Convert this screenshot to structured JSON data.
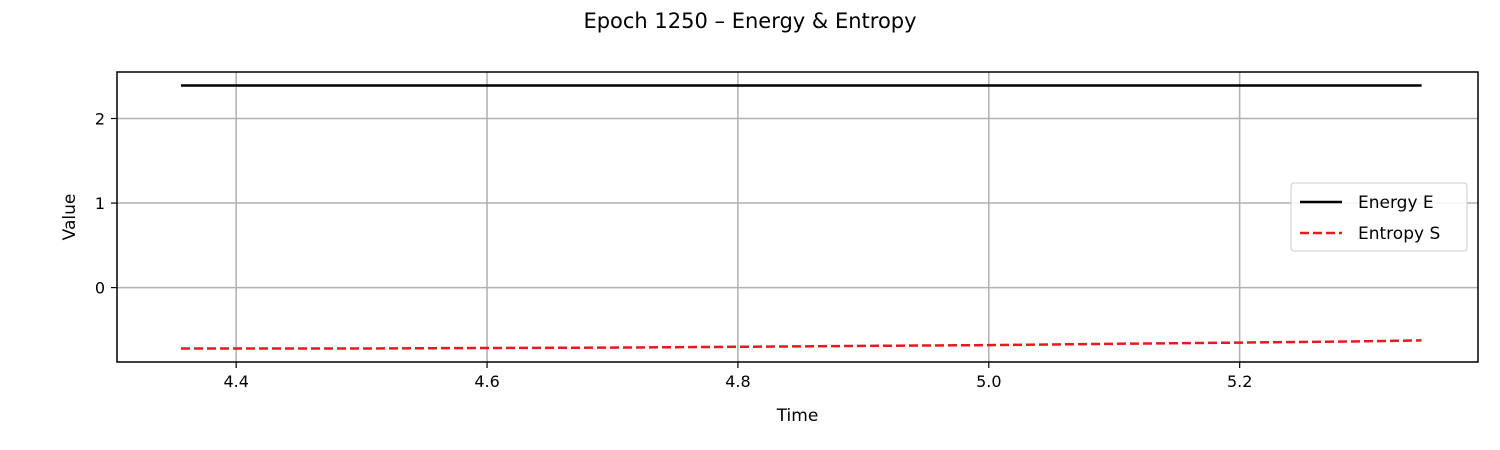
{
  "chart_data": {
    "type": "line",
    "title": "Epoch 1250 – Energy & Entropy",
    "xlabel": "Time",
    "ylabel": "Value",
    "xlim": [
      4.305,
      5.39
    ],
    "ylim": [
      -0.88,
      2.55
    ],
    "xticks": [
      4.4,
      4.6,
      4.8,
      5.0,
      5.2
    ],
    "xtick_labels": [
      "4.4",
      "4.6",
      "4.8",
      "5.0",
      "5.2"
    ],
    "yticks": [
      0,
      1,
      2
    ],
    "ytick_labels": [
      "0",
      "1",
      "2"
    ],
    "grid": true,
    "legend_position": "center-right",
    "series": [
      {
        "name": "Energy E",
        "color": "#000000",
        "style": "solid",
        "x": [
          4.356,
          4.6,
          4.8,
          5.0,
          5.2,
          5.345
        ],
        "y": [
          2.39,
          2.39,
          2.39,
          2.39,
          2.39,
          2.39
        ]
      },
      {
        "name": "Entropy S",
        "color": "#e8191c",
        "style": "dashed",
        "x": [
          4.356,
          4.5,
          4.6,
          4.7,
          4.8,
          4.9,
          5.0,
          5.1,
          5.2,
          5.3,
          5.345
        ],
        "y": [
          -0.72,
          -0.72,
          -0.715,
          -0.71,
          -0.7,
          -0.69,
          -0.68,
          -0.665,
          -0.65,
          -0.635,
          -0.625
        ]
      }
    ]
  }
}
